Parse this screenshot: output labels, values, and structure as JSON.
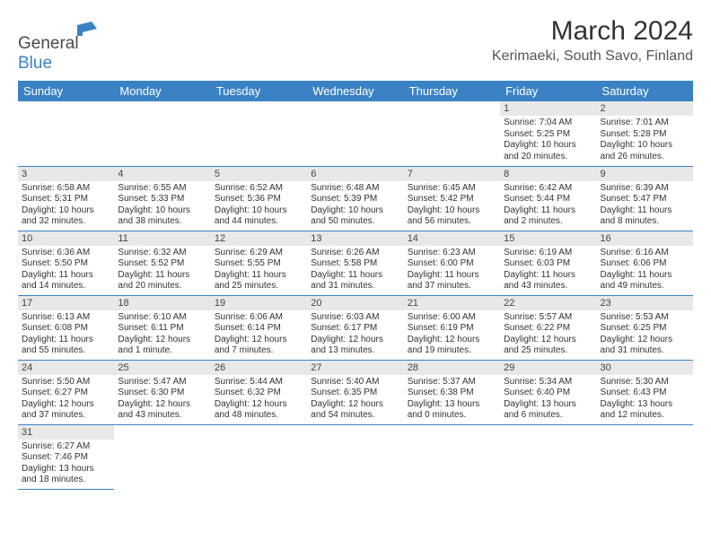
{
  "brand": {
    "part1": "General",
    "part2": "Blue"
  },
  "title": "March 2024",
  "location": "Kerimaeki, South Savo, Finland",
  "colors": {
    "header_bg": "#3b82c4",
    "header_text": "#ffffff",
    "daynum_bg": "#e8e8e8",
    "row_border": "#3b82c4",
    "text": "#333333"
  },
  "typography": {
    "title_fontsize": 30,
    "location_fontsize": 16,
    "dayhead_fontsize": 13,
    "cell_fontsize": 10
  },
  "day_headers": [
    "Sunday",
    "Monday",
    "Tuesday",
    "Wednesday",
    "Thursday",
    "Friday",
    "Saturday"
  ],
  "weeks": [
    [
      null,
      null,
      null,
      null,
      null,
      {
        "n": "1",
        "sr": "Sunrise: 7:04 AM",
        "ss": "Sunset: 5:25 PM",
        "d1": "Daylight: 10 hours",
        "d2": "and 20 minutes."
      },
      {
        "n": "2",
        "sr": "Sunrise: 7:01 AM",
        "ss": "Sunset: 5:28 PM",
        "d1": "Daylight: 10 hours",
        "d2": "and 26 minutes."
      }
    ],
    [
      {
        "n": "3",
        "sr": "Sunrise: 6:58 AM",
        "ss": "Sunset: 5:31 PM",
        "d1": "Daylight: 10 hours",
        "d2": "and 32 minutes."
      },
      {
        "n": "4",
        "sr": "Sunrise: 6:55 AM",
        "ss": "Sunset: 5:33 PM",
        "d1": "Daylight: 10 hours",
        "d2": "and 38 minutes."
      },
      {
        "n": "5",
        "sr": "Sunrise: 6:52 AM",
        "ss": "Sunset: 5:36 PM",
        "d1": "Daylight: 10 hours",
        "d2": "and 44 minutes."
      },
      {
        "n": "6",
        "sr": "Sunrise: 6:48 AM",
        "ss": "Sunset: 5:39 PM",
        "d1": "Daylight: 10 hours",
        "d2": "and 50 minutes."
      },
      {
        "n": "7",
        "sr": "Sunrise: 6:45 AM",
        "ss": "Sunset: 5:42 PM",
        "d1": "Daylight: 10 hours",
        "d2": "and 56 minutes."
      },
      {
        "n": "8",
        "sr": "Sunrise: 6:42 AM",
        "ss": "Sunset: 5:44 PM",
        "d1": "Daylight: 11 hours",
        "d2": "and 2 minutes."
      },
      {
        "n": "9",
        "sr": "Sunrise: 6:39 AM",
        "ss": "Sunset: 5:47 PM",
        "d1": "Daylight: 11 hours",
        "d2": "and 8 minutes."
      }
    ],
    [
      {
        "n": "10",
        "sr": "Sunrise: 6:36 AM",
        "ss": "Sunset: 5:50 PM",
        "d1": "Daylight: 11 hours",
        "d2": "and 14 minutes."
      },
      {
        "n": "11",
        "sr": "Sunrise: 6:32 AM",
        "ss": "Sunset: 5:52 PM",
        "d1": "Daylight: 11 hours",
        "d2": "and 20 minutes."
      },
      {
        "n": "12",
        "sr": "Sunrise: 6:29 AM",
        "ss": "Sunset: 5:55 PM",
        "d1": "Daylight: 11 hours",
        "d2": "and 25 minutes."
      },
      {
        "n": "13",
        "sr": "Sunrise: 6:26 AM",
        "ss": "Sunset: 5:58 PM",
        "d1": "Daylight: 11 hours",
        "d2": "and 31 minutes."
      },
      {
        "n": "14",
        "sr": "Sunrise: 6:23 AM",
        "ss": "Sunset: 6:00 PM",
        "d1": "Daylight: 11 hours",
        "d2": "and 37 minutes."
      },
      {
        "n": "15",
        "sr": "Sunrise: 6:19 AM",
        "ss": "Sunset: 6:03 PM",
        "d1": "Daylight: 11 hours",
        "d2": "and 43 minutes."
      },
      {
        "n": "16",
        "sr": "Sunrise: 6:16 AM",
        "ss": "Sunset: 6:06 PM",
        "d1": "Daylight: 11 hours",
        "d2": "and 49 minutes."
      }
    ],
    [
      {
        "n": "17",
        "sr": "Sunrise: 6:13 AM",
        "ss": "Sunset: 6:08 PM",
        "d1": "Daylight: 11 hours",
        "d2": "and 55 minutes."
      },
      {
        "n": "18",
        "sr": "Sunrise: 6:10 AM",
        "ss": "Sunset: 6:11 PM",
        "d1": "Daylight: 12 hours",
        "d2": "and 1 minute."
      },
      {
        "n": "19",
        "sr": "Sunrise: 6:06 AM",
        "ss": "Sunset: 6:14 PM",
        "d1": "Daylight: 12 hours",
        "d2": "and 7 minutes."
      },
      {
        "n": "20",
        "sr": "Sunrise: 6:03 AM",
        "ss": "Sunset: 6:17 PM",
        "d1": "Daylight: 12 hours",
        "d2": "and 13 minutes."
      },
      {
        "n": "21",
        "sr": "Sunrise: 6:00 AM",
        "ss": "Sunset: 6:19 PM",
        "d1": "Daylight: 12 hours",
        "d2": "and 19 minutes."
      },
      {
        "n": "22",
        "sr": "Sunrise: 5:57 AM",
        "ss": "Sunset: 6:22 PM",
        "d1": "Daylight: 12 hours",
        "d2": "and 25 minutes."
      },
      {
        "n": "23",
        "sr": "Sunrise: 5:53 AM",
        "ss": "Sunset: 6:25 PM",
        "d1": "Daylight: 12 hours",
        "d2": "and 31 minutes."
      }
    ],
    [
      {
        "n": "24",
        "sr": "Sunrise: 5:50 AM",
        "ss": "Sunset: 6:27 PM",
        "d1": "Daylight: 12 hours",
        "d2": "and 37 minutes."
      },
      {
        "n": "25",
        "sr": "Sunrise: 5:47 AM",
        "ss": "Sunset: 6:30 PM",
        "d1": "Daylight: 12 hours",
        "d2": "and 43 minutes."
      },
      {
        "n": "26",
        "sr": "Sunrise: 5:44 AM",
        "ss": "Sunset: 6:32 PM",
        "d1": "Daylight: 12 hours",
        "d2": "and 48 minutes."
      },
      {
        "n": "27",
        "sr": "Sunrise: 5:40 AM",
        "ss": "Sunset: 6:35 PM",
        "d1": "Daylight: 12 hours",
        "d2": "and 54 minutes."
      },
      {
        "n": "28",
        "sr": "Sunrise: 5:37 AM",
        "ss": "Sunset: 6:38 PM",
        "d1": "Daylight: 13 hours",
        "d2": "and 0 minutes."
      },
      {
        "n": "29",
        "sr": "Sunrise: 5:34 AM",
        "ss": "Sunset: 6:40 PM",
        "d1": "Daylight: 13 hours",
        "d2": "and 6 minutes."
      },
      {
        "n": "30",
        "sr": "Sunrise: 5:30 AM",
        "ss": "Sunset: 6:43 PM",
        "d1": "Daylight: 13 hours",
        "d2": "and 12 minutes."
      }
    ],
    [
      {
        "n": "31",
        "sr": "Sunrise: 6:27 AM",
        "ss": "Sunset: 7:46 PM",
        "d1": "Daylight: 13 hours",
        "d2": "and 18 minutes."
      },
      null,
      null,
      null,
      null,
      null,
      null
    ]
  ]
}
